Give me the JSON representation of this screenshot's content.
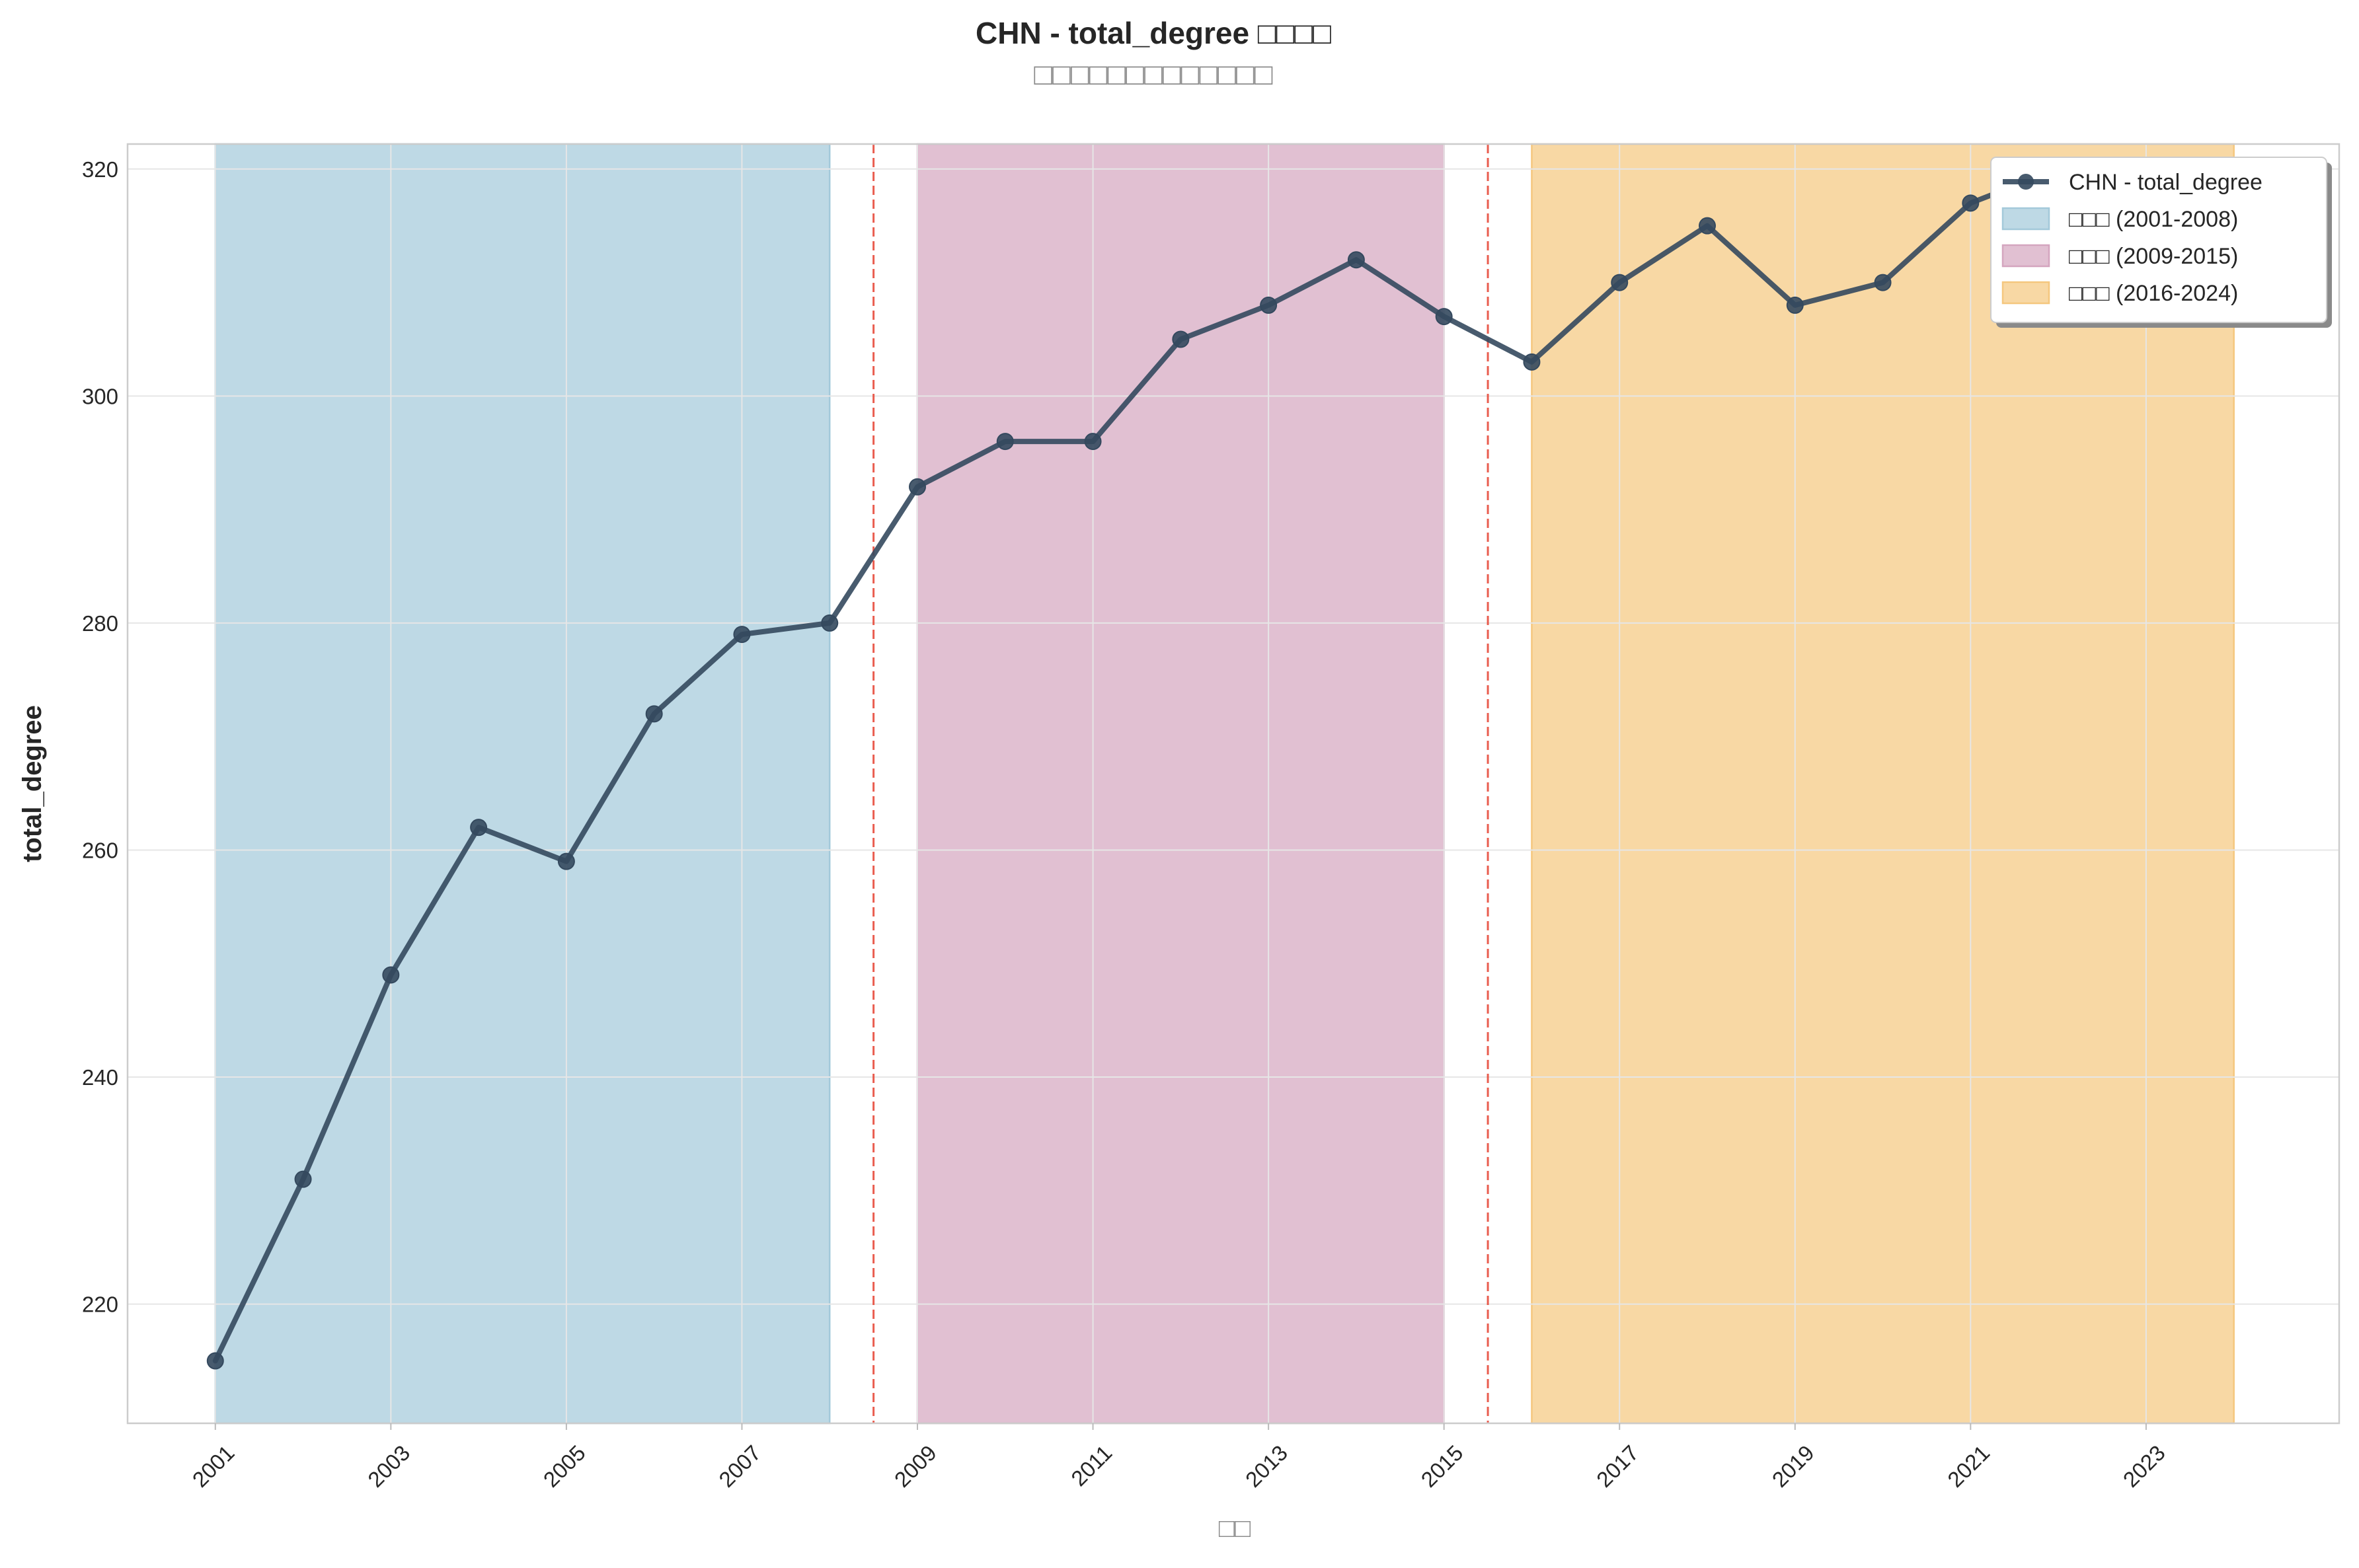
{
  "chart_data": {
    "type": "line",
    "title": "CHN - total_degree □□□□",
    "subtitle": "□□□□□□□□□□□□□",
    "xlabel": "□□",
    "ylabel": "total_degree",
    "xlim": [
      2000.0,
      2025.2
    ],
    "ylim": [
      209.5,
      322.2
    ],
    "xticks": [
      2001,
      2003,
      2005,
      2007,
      2009,
      2011,
      2013,
      2015,
      2017,
      2019,
      2021,
      2023
    ],
    "yticks": [
      220,
      240,
      260,
      280,
      300,
      320
    ],
    "grid": true,
    "legend_position": "top-right",
    "series": [
      {
        "name": "CHN - total_degree",
        "color": "#34495e",
        "marker": "circle",
        "x": [
          2001,
          2002,
          2003,
          2004,
          2005,
          2006,
          2007,
          2008,
          2009,
          2010,
          2011,
          2012,
          2013,
          2014,
          2015,
          2016,
          2017,
          2018,
          2019,
          2020,
          2021,
          2022,
          2023,
          2024
        ],
        "y": [
          215,
          231,
          249,
          262,
          259,
          272,
          279,
          280,
          292,
          296,
          296,
          305,
          308,
          312,
          307,
          303,
          310,
          315,
          308,
          310,
          317,
          320,
          318,
          319
        ]
      }
    ],
    "periods": [
      {
        "label": "□□□ (2001-2008)",
        "start": 2001,
        "end": 2008,
        "color": "#a3c9da"
      },
      {
        "label": "□□□ (2009-2015)",
        "start": 2009,
        "end": 2015,
        "color": "#d4a5bf"
      },
      {
        "label": "□□□ (2016-2024)",
        "start": 2016,
        "end": 2024,
        "color": "#f5c77e"
      }
    ],
    "breakpoints": [
      2008.5,
      2015.5
    ],
    "breakpoint_color": "#e74c3c"
  }
}
